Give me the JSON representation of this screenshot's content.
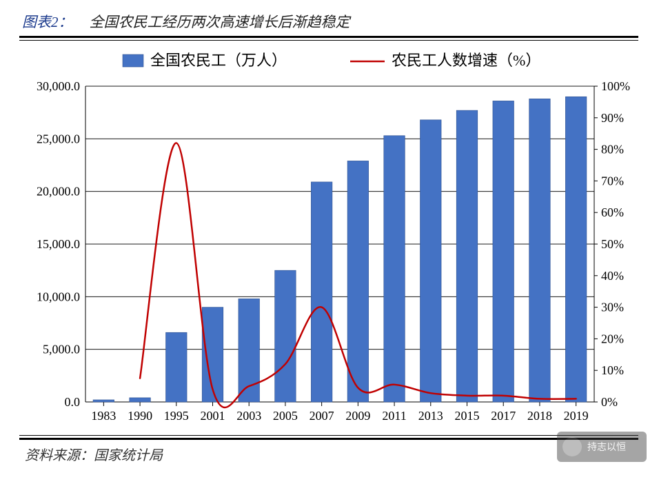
{
  "header": {
    "label": "图表2：",
    "title": "全国农民工经历两次高速增长后渐趋稳定"
  },
  "source": {
    "label": "资料来源：",
    "value": "国家统计局"
  },
  "watermark": {
    "text": "持志以恒"
  },
  "chart": {
    "type": "bar+line",
    "background_color": "#ffffff",
    "plot_border_color": "#000000",
    "grid_color": "#000000",
    "grid_line_width": 1,
    "categories": [
      "1983",
      "1990",
      "1995",
      "2001",
      "2003",
      "2005",
      "2007",
      "2009",
      "2011",
      "2013",
      "2015",
      "2017",
      "2018",
      "2019"
    ],
    "bar": {
      "label": "全国农民工（万人）",
      "values": [
        200,
        400,
        6600,
        9000,
        9800,
        12500,
        20900,
        22900,
        25300,
        26800,
        27700,
        28600,
        28800,
        29000
      ],
      "color": "#4472c4",
      "border_color": "#2f528f",
      "width_ratio": 0.58
    },
    "line": {
      "label": "农民工人数增速（%）",
      "values": [
        null,
        7.5,
        82,
        4,
        5,
        12,
        30,
        4.5,
        5.5,
        2.8,
        2,
        2,
        1,
        1
      ],
      "color": "#c00000",
      "width": 2.5
    },
    "y_left": {
      "min": 0,
      "max": 30000,
      "step": 5000,
      "tick_labels": [
        "0.0",
        "5,000.0",
        "10,000.0",
        "15,000.0",
        "20,000.0",
        "25,000.0",
        "30,000.0"
      ],
      "fontsize": 18
    },
    "y_right": {
      "min": 0,
      "max": 100,
      "step": 10,
      "tick_labels": [
        "0%",
        "10%",
        "20%",
        "30%",
        "40%",
        "50%",
        "60%",
        "70%",
        "80%",
        "90%",
        "100%"
      ],
      "fontsize": 18
    },
    "x_axis": {
      "fontsize": 18
    },
    "legend": {
      "position": "top",
      "fontsize": 22,
      "bar_swatch_color": "#4472c4",
      "line_swatch_color": "#c00000"
    }
  }
}
